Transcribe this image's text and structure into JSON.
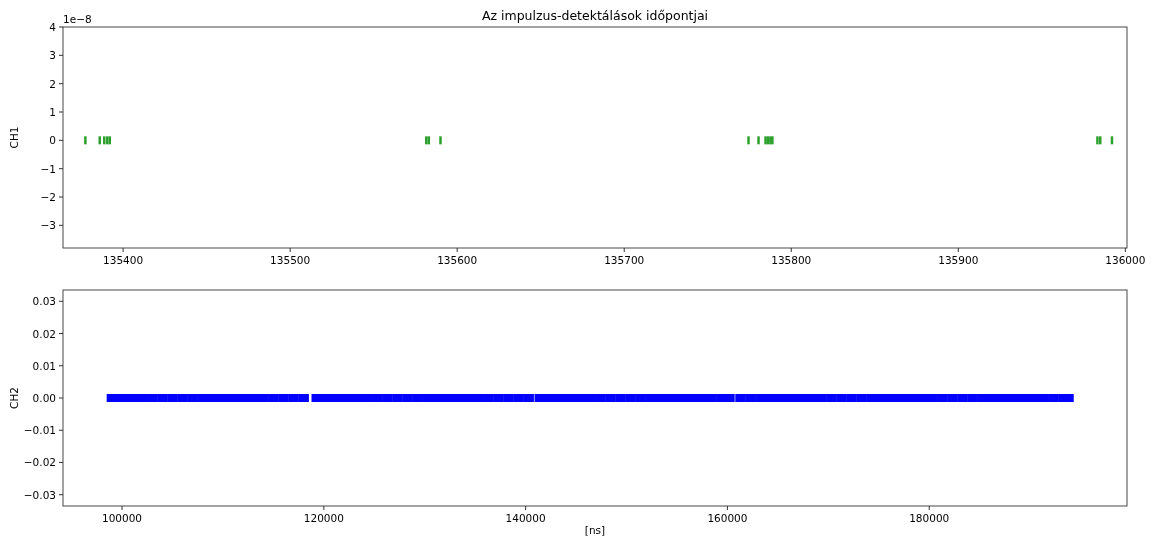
{
  "chart_data": [
    {
      "type": "scatter",
      "title": "Az impulzus-detektálások időpontjai",
      "ylabel": "CH1",
      "annotations": [
        "1e−8"
      ],
      "xlim": [
        135364,
        136001
      ],
      "xticks": [
        135400,
        135500,
        135600,
        135700,
        135800,
        135900,
        136000
      ],
      "ylim": [
        -3.8,
        4.0
      ],
      "yticks": [
        {
          "value": -3,
          "label": "−3"
        },
        {
          "value": -2,
          "label": "−2"
        },
        {
          "value": -1,
          "label": "−1"
        },
        0,
        1,
        2,
        3,
        4
      ],
      "series": [
        {
          "color": "#2ca02c",
          "x": [
            135377.4,
            135386,
            135388.7,
            135390.5,
            135392,
            135581.5,
            135583,
            135590,
            135774.4,
            135780.4,
            135784.6,
            135786,
            135787.5,
            135788.7,
            135983.3,
            135985,
            135992
          ],
          "values": [
            0,
            0,
            0,
            0,
            0,
            0,
            0,
            0,
            0,
            0,
            0,
            0,
            0,
            0,
            0,
            0,
            0
          ]
        }
      ]
    },
    {
      "type": "scatter",
      "ylabel": "CH2",
      "xlabel": "[ns]",
      "xlim": [
        94150,
        199600
      ],
      "xticks": [
        100000,
        120000,
        140000,
        160000,
        180000
      ],
      "ylim": [
        -0.0335,
        0.0335
      ],
      "yticks": [
        {
          "value": -0.03,
          "label": "−0.03"
        },
        {
          "value": -0.02,
          "label": "−0.02"
        },
        {
          "value": -0.01,
          "label": "−0.01"
        },
        {
          "value": 0,
          "label": "0.00"
        },
        {
          "value": 0.01,
          "label": "0.01"
        },
        {
          "value": 0.02,
          "label": "0.02"
        },
        {
          "value": 0.03,
          "label": "0.03"
        }
      ],
      "series": [
        {
          "color": "#0000ff",
          "x": [
            99000,
            100000,
            101000,
            102000,
            103000,
            104000,
            105000,
            106000,
            107000,
            108000,
            109000,
            110000,
            111000,
            112000,
            113000,
            114000,
            115000,
            116000,
            117000,
            118000,
            119300,
            120300,
            121300,
            122300,
            123300,
            124300,
            125300,
            126300,
            127300,
            128300,
            129300,
            130300,
            131300,
            132300,
            133300,
            134300,
            135300,
            136300,
            137300,
            138300,
            139300,
            140300,
            141400,
            142400,
            143400,
            144400,
            145400,
            146400,
            147400,
            148400,
            149400,
            150400,
            151400,
            152400,
            153400,
            154400,
            155400,
            156400,
            157400,
            158400,
            159400,
            160200,
            161300,
            162300,
            163300,
            164300,
            165300,
            166300,
            167300,
            168300,
            169300,
            170300,
            171300,
            172300,
            173300,
            174300,
            175300,
            176300,
            177300,
            178300,
            179300,
            180300,
            181300,
            182300,
            183300,
            184300,
            185300,
            186300,
            187300,
            188300,
            189300,
            190300,
            191300,
            192300,
            193300,
            193800
          ],
          "values": [
            0,
            0,
            0,
            0,
            0,
            0,
            0,
            0,
            0,
            0,
            0,
            0,
            0,
            0,
            0,
            0,
            0,
            0,
            0,
            0,
            0,
            0,
            0,
            0,
            0,
            0,
            0,
            0,
            0,
            0,
            0,
            0,
            0,
            0,
            0,
            0,
            0,
            0,
            0,
            0,
            0,
            0,
            0,
            0,
            0,
            0,
            0,
            0,
            0,
            0,
            0,
            0,
            0,
            0,
            0,
            0,
            0,
            0,
            0,
            0,
            0,
            0,
            0,
            0,
            0,
            0,
            0,
            0,
            0,
            0,
            0,
            0,
            0,
            0,
            0,
            0,
            0,
            0,
            0,
            0,
            0,
            0,
            0,
            0,
            0,
            0,
            0,
            0,
            0,
            0,
            0,
            0,
            0,
            0,
            0,
            0
          ]
        }
      ]
    }
  ]
}
